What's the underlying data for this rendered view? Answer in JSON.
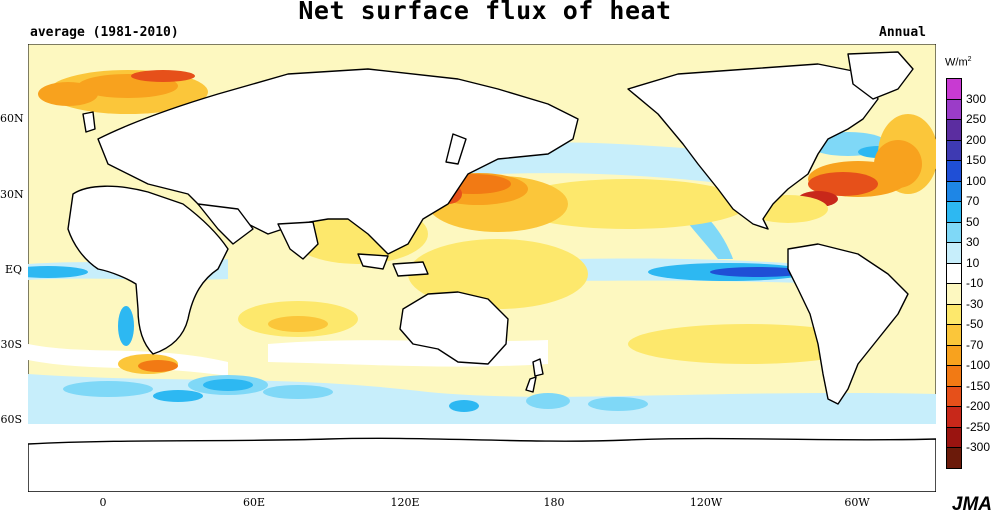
{
  "title": "Net surface flux of heat",
  "subtitle": "average (1981-2010)",
  "period": "Annual",
  "unit": "W/m",
  "unit_sup": "2",
  "credit": "JMA",
  "lat_labels": [
    "60N",
    "30N",
    "EQ",
    "30S",
    "60S"
  ],
  "lon_labels": [
    "0",
    "60E",
    "120E",
    "180",
    "120W",
    "60W"
  ],
  "legend": {
    "levels": [
      "300",
      "250",
      "200",
      "150",
      "100",
      "70",
      "50",
      "30",
      "10",
      "-10",
      "-30",
      "-50",
      "-70",
      "-100",
      "-150",
      "-200",
      "-250",
      "-300"
    ],
    "colors": [
      "#c83ad2",
      "#9b3cc8",
      "#5b2da0",
      "#3e3ab2",
      "#1f4fd6",
      "#1e86e6",
      "#2db8f2",
      "#7fd8f7",
      "#c7eefb",
      "#ffffff",
      "#fdf8c0",
      "#fde86c",
      "#fbc63a",
      "#f8a21e",
      "#f27a14",
      "#e6501a",
      "#c8281a",
      "#9a1410",
      "#6b1a0a"
    ]
  }
}
